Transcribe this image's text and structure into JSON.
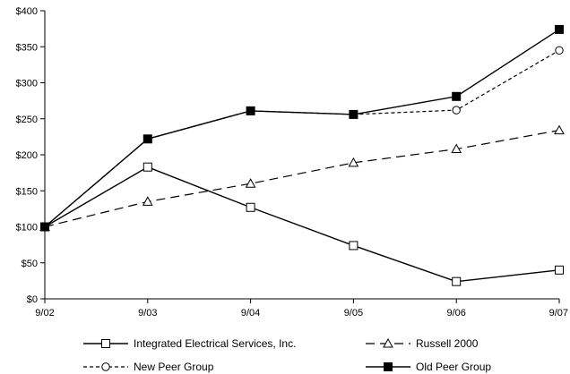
{
  "chart_data": {
    "type": "line",
    "title": "",
    "xlabel": "",
    "ylabel": "",
    "categories": [
      "9/02",
      "9/03",
      "9/04",
      "9/05",
      "9/06",
      "9/07"
    ],
    "y_tick_labels": [
      "$0",
      "$50",
      "$100",
      "$150",
      "$200",
      "$250",
      "$300",
      "$350",
      "$400"
    ],
    "ylim": [
      0,
      400
    ],
    "grid": false,
    "legend_position": "bottom",
    "series": [
      {
        "name": "Integrated Electrical Services, Inc.",
        "values": [
          100,
          183,
          127,
          74,
          24,
          40
        ],
        "line_style": "solid",
        "marker": "open-square"
      },
      {
        "name": "Russell 2000",
        "values": [
          100,
          135,
          160,
          189,
          208,
          234
        ],
        "line_style": "long-dash",
        "marker": "open-triangle"
      },
      {
        "name": "New Peer Group",
        "values": [
          100,
          222,
          261,
          256,
          262,
          345
        ],
        "line_style": "dotted",
        "marker": "open-circle"
      },
      {
        "name": "Old Peer Group",
        "values": [
          100,
          222,
          261,
          256,
          281,
          374
        ],
        "line_style": "solid",
        "marker": "filled-square"
      }
    ]
  }
}
